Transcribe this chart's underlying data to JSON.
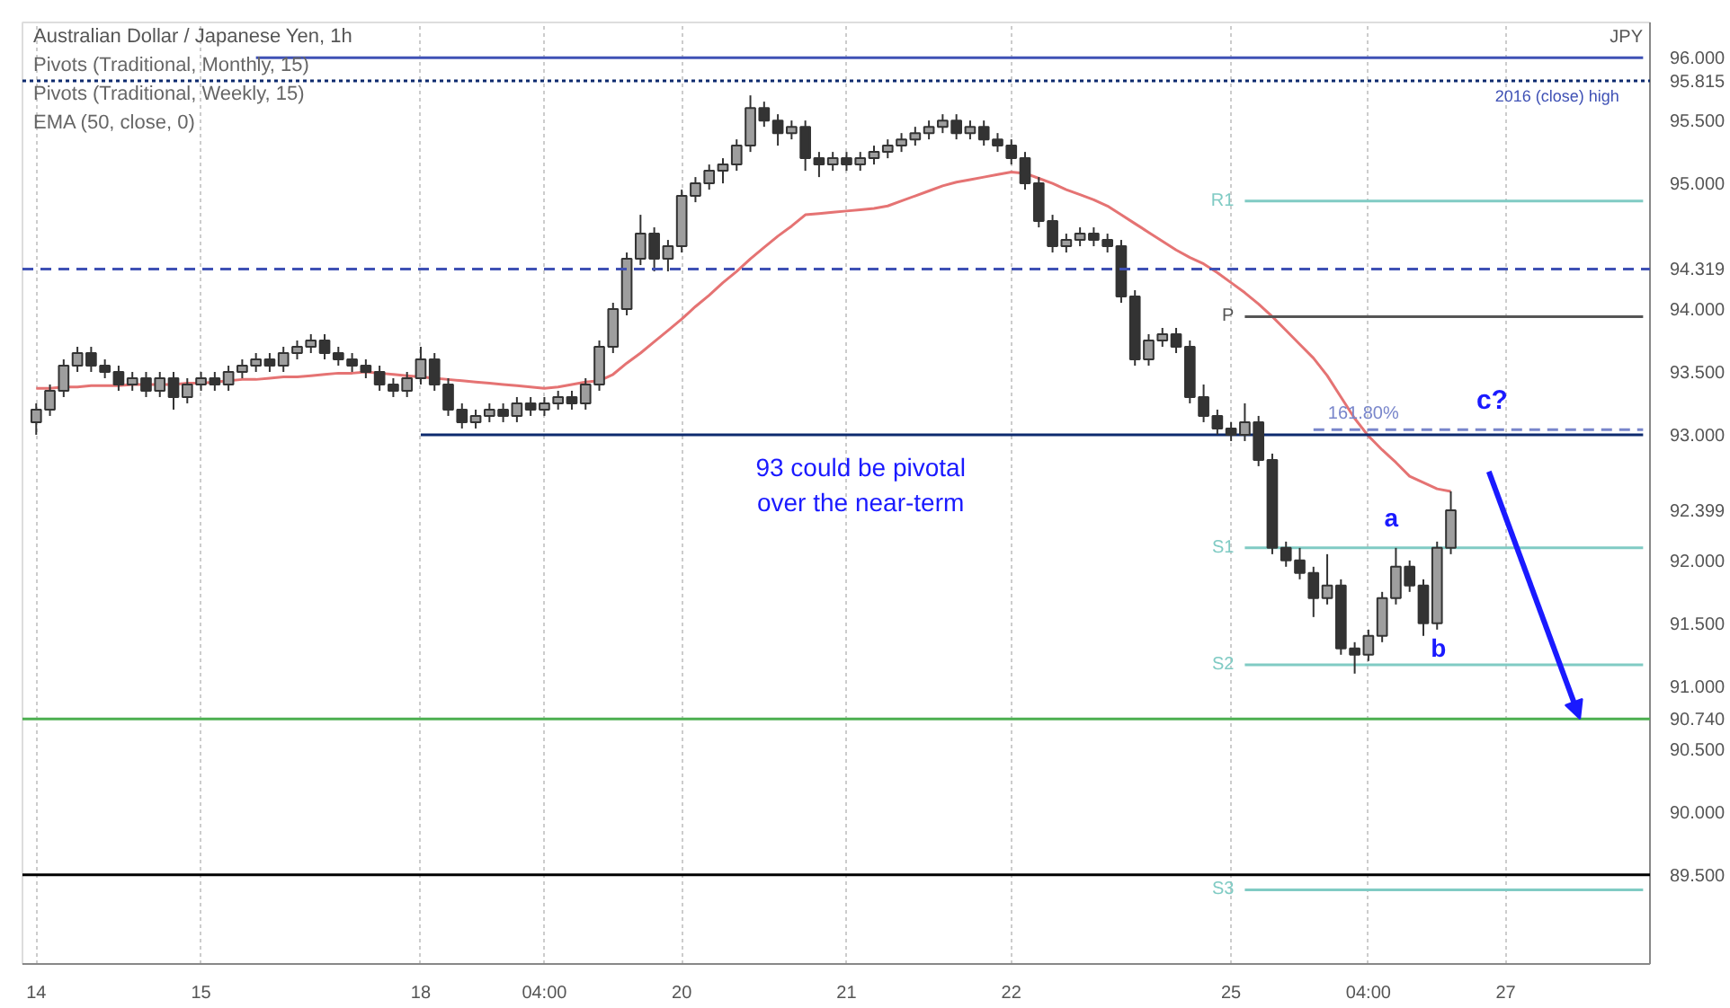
{
  "chart_data": {
    "type": "candlestick",
    "title": "Australian Dollar / Japanese Yen, 1h",
    "ylabel": "JPY",
    "color": "#333333",
    "categories": [
      "14",
      null,
      null,
      null,
      null,
      null,
      null,
      null,
      null,
      null,
      null,
      null,
      "15",
      null,
      null,
      null,
      null,
      null,
      null,
      null,
      null,
      null,
      null,
      null,
      null,
      null,
      null,
      null,
      "18",
      null,
      null,
      null,
      null,
      null,
      null,
      null,
      null,
      "04:00",
      null,
      null,
      null,
      null,
      null,
      null,
      null,
      null,
      null,
      "20",
      null,
      null,
      null,
      null,
      null,
      null,
      null,
      null,
      null,
      null,
      null,
      "21",
      null,
      null,
      null,
      null,
      null,
      null,
      null,
      null,
      null,
      null,
      null,
      "22",
      null,
      null,
      null,
      null,
      null,
      null,
      null,
      null,
      null,
      null,
      null,
      null,
      null,
      null,
      null,
      "25",
      null,
      null,
      null,
      null,
      null,
      null,
      null,
      null,
      null,
      "04:00",
      null,
      null,
      null,
      null,
      null,
      null,
      null,
      null,
      null,
      "27",
      null,
      null,
      null,
      null,
      null,
      null,
      null,
      null,
      null,
      null
    ],
    "ohlc": [
      [
        93.1,
        93.25,
        93.0,
        93.2
      ],
      [
        93.2,
        93.4,
        93.15,
        93.35
      ],
      [
        93.35,
        93.6,
        93.3,
        93.55
      ],
      [
        93.55,
        93.7,
        93.5,
        93.65
      ],
      [
        93.65,
        93.7,
        93.5,
        93.55
      ],
      [
        93.55,
        93.6,
        93.45,
        93.5
      ],
      [
        93.5,
        93.55,
        93.35,
        93.4
      ],
      [
        93.4,
        93.5,
        93.35,
        93.45
      ],
      [
        93.45,
        93.5,
        93.3,
        93.35
      ],
      [
        93.35,
        93.5,
        93.3,
        93.45
      ],
      [
        93.45,
        93.5,
        93.2,
        93.3
      ],
      [
        93.3,
        93.45,
        93.25,
        93.4
      ],
      [
        93.4,
        93.5,
        93.35,
        93.45
      ],
      [
        93.45,
        93.5,
        93.35,
        93.4
      ],
      [
        93.4,
        93.55,
        93.35,
        93.5
      ],
      [
        93.5,
        93.6,
        93.45,
        93.55
      ],
      [
        93.55,
        93.65,
        93.5,
        93.6
      ],
      [
        93.6,
        93.65,
        93.5,
        93.55
      ],
      [
        93.55,
        93.7,
        93.5,
        93.65
      ],
      [
        93.65,
        93.75,
        93.6,
        93.7
      ],
      [
        93.7,
        93.8,
        93.65,
        93.75
      ],
      [
        93.75,
        93.8,
        93.6,
        93.65
      ],
      [
        93.65,
        93.7,
        93.55,
        93.6
      ],
      [
        93.6,
        93.65,
        93.5,
        93.55
      ],
      [
        93.55,
        93.6,
        93.45,
        93.5
      ],
      [
        93.5,
        93.55,
        93.35,
        93.4
      ],
      [
        93.4,
        93.45,
        93.3,
        93.35
      ],
      [
        93.35,
        93.5,
        93.3,
        93.45
      ],
      [
        93.45,
        93.7,
        93.4,
        93.6
      ],
      [
        93.6,
        93.65,
        93.35,
        93.4
      ],
      [
        93.4,
        93.45,
        93.15,
        93.2
      ],
      [
        93.2,
        93.25,
        93.05,
        93.1
      ],
      [
        93.1,
        93.2,
        93.05,
        93.15
      ],
      [
        93.15,
        93.25,
        93.1,
        93.2
      ],
      [
        93.2,
        93.25,
        93.1,
        93.15
      ],
      [
        93.15,
        93.3,
        93.1,
        93.25
      ],
      [
        93.25,
        93.3,
        93.15,
        93.2
      ],
      [
        93.2,
        93.3,
        93.15,
        93.25
      ],
      [
        93.25,
        93.35,
        93.2,
        93.3
      ],
      [
        93.3,
        93.35,
        93.2,
        93.25
      ],
      [
        93.25,
        93.45,
        93.2,
        93.4
      ],
      [
        93.4,
        93.75,
        93.35,
        93.7
      ],
      [
        93.7,
        94.05,
        93.65,
        94.0
      ],
      [
        94.0,
        94.45,
        93.95,
        94.4
      ],
      [
        94.4,
        94.75,
        94.35,
        94.6
      ],
      [
        94.6,
        94.65,
        94.3,
        94.4
      ],
      [
        94.4,
        94.55,
        94.3,
        94.5
      ],
      [
        94.5,
        94.95,
        94.45,
        94.9
      ],
      [
        94.9,
        95.05,
        94.85,
        95.0
      ],
      [
        95.0,
        95.15,
        94.95,
        95.1
      ],
      [
        95.1,
        95.2,
        95.0,
        95.15
      ],
      [
        95.15,
        95.35,
        95.1,
        95.3
      ],
      [
        95.3,
        95.7,
        95.25,
        95.6
      ],
      [
        95.6,
        95.65,
        95.45,
        95.5
      ],
      [
        95.5,
        95.55,
        95.3,
        95.4
      ],
      [
        95.4,
        95.5,
        95.35,
        95.45
      ],
      [
        95.45,
        95.5,
        95.1,
        95.2
      ],
      [
        95.2,
        95.25,
        95.05,
        95.15
      ],
      [
        95.15,
        95.25,
        95.1,
        95.2
      ],
      [
        95.2,
        95.25,
        95.1,
        95.15
      ],
      [
        95.15,
        95.25,
        95.1,
        95.2
      ],
      [
        95.2,
        95.3,
        95.15,
        95.25
      ],
      [
        95.25,
        95.35,
        95.2,
        95.3
      ],
      [
        95.3,
        95.4,
        95.25,
        95.35
      ],
      [
        95.35,
        95.45,
        95.3,
        95.4
      ],
      [
        95.4,
        95.5,
        95.35,
        95.45
      ],
      [
        95.45,
        95.55,
        95.4,
        95.5
      ],
      [
        95.5,
        95.55,
        95.35,
        95.4
      ],
      [
        95.4,
        95.5,
        95.35,
        95.45
      ],
      [
        95.45,
        95.5,
        95.3,
        95.35
      ],
      [
        95.35,
        95.4,
        95.25,
        95.3
      ],
      [
        95.3,
        95.35,
        95.15,
        95.2
      ],
      [
        95.2,
        95.25,
        94.95,
        95.0
      ],
      [
        95.0,
        95.05,
        94.65,
        94.7
      ],
      [
        94.7,
        94.75,
        94.45,
        94.5
      ],
      [
        94.5,
        94.6,
        94.45,
        94.55
      ],
      [
        94.55,
        94.65,
        94.5,
        94.6
      ],
      [
        94.6,
        94.65,
        94.5,
        94.55
      ],
      [
        94.55,
        94.6,
        94.45,
        94.5
      ],
      [
        94.5,
        94.55,
        94.05,
        94.1
      ],
      [
        94.1,
        94.15,
        93.55,
        93.6
      ],
      [
        93.6,
        93.8,
        93.55,
        93.75
      ],
      [
        93.75,
        93.85,
        93.7,
        93.8
      ],
      [
        93.8,
        93.85,
        93.65,
        93.7
      ],
      [
        93.7,
        93.75,
        93.25,
        93.3
      ],
      [
        93.3,
        93.4,
        93.1,
        93.15
      ],
      [
        93.15,
        93.2,
        93.0,
        93.05
      ],
      [
        93.05,
        93.1,
        92.95,
        93.0
      ],
      [
        93.0,
        93.25,
        92.95,
        93.1
      ],
      [
        93.1,
        93.15,
        92.75,
        92.8
      ],
      [
        92.8,
        92.85,
        92.05,
        92.1
      ],
      [
        92.1,
        92.15,
        91.95,
        92.0
      ],
      [
        92.0,
        92.1,
        91.85,
        91.9
      ],
      [
        91.9,
        91.95,
        91.55,
        91.7
      ],
      [
        91.7,
        92.05,
        91.65,
        91.8
      ],
      [
        91.8,
        91.85,
        91.25,
        91.3
      ],
      [
        91.3,
        91.35,
        91.1,
        91.25
      ],
      [
        91.25,
        91.45,
        91.2,
        91.4
      ],
      [
        91.4,
        91.75,
        91.35,
        91.7
      ],
      [
        91.7,
        92.1,
        91.65,
        91.95
      ],
      [
        91.95,
        92.0,
        91.75,
        91.8
      ],
      [
        91.8,
        91.85,
        91.4,
        91.5
      ],
      [
        91.5,
        92.15,
        91.45,
        92.1
      ],
      [
        92.1,
        92.55,
        92.05,
        92.4
      ],
      null,
      null,
      null,
      null,
      null,
      null,
      null,
      null,
      null,
      null,
      null,
      null,
      null,
      null
    ],
    "series": [
      {
        "type": "line",
        "color": "#e57373",
        "values": [
          93.37,
          93.37,
          93.38,
          93.38,
          93.39,
          93.39,
          93.39,
          93.4,
          93.4,
          93.4,
          93.4,
          93.41,
          93.41,
          93.42,
          93.43,
          93.44,
          93.44,
          93.45,
          93.46,
          93.46,
          93.47,
          93.48,
          93.49,
          93.49,
          93.5,
          93.49,
          93.48,
          93.47,
          93.46,
          93.45,
          93.44,
          93.43,
          93.42,
          93.41,
          93.4,
          93.39,
          93.38,
          93.37,
          93.38,
          93.4,
          93.42,
          93.43,
          93.48,
          93.57,
          93.65,
          93.74,
          93.83,
          93.92,
          94.02,
          94.11,
          94.21,
          94.3,
          94.4,
          94.49,
          94.58,
          94.66,
          94.75,
          94.76,
          94.77,
          94.78,
          94.79,
          94.8,
          94.82,
          94.86,
          94.9,
          94.94,
          94.98,
          95.01,
          95.03,
          95.05,
          95.07,
          95.09,
          95.08,
          95.04,
          95.0,
          94.95,
          94.91,
          94.87,
          94.82,
          94.75,
          94.68,
          94.61,
          94.54,
          94.47,
          94.41,
          94.36,
          94.29,
          94.21,
          94.13,
          94.04,
          93.94,
          93.83,
          93.72,
          93.61,
          93.47,
          93.3,
          93.13,
          92.99,
          92.88,
          92.78,
          92.67,
          92.62,
          92.57,
          92.55,
          null,
          null,
          null,
          null,
          null,
          null,
          null,
          null,
          null,
          null,
          null,
          null,
          null,
          null
        ]
      },
      {
        "type": "line",
        "color": "#3f51b5",
        "values": [
          null,
          null,
          null,
          null,
          null,
          null,
          null,
          null,
          null,
          null,
          null,
          null,
          null,
          null,
          null,
          null,
          96.0,
          96.0,
          96.0,
          96.0,
          96.0,
          96.0,
          96.0,
          96.0,
          96.0,
          96.0,
          96.0,
          96.0,
          96.0,
          96.0,
          96.0,
          96.0,
          96.0,
          96.0,
          96.0,
          96.0,
          96.0,
          96.0,
          96.0,
          96.0,
          96.0,
          96.0,
          96.0,
          96.0,
          96.0,
          96.0,
          96.0,
          96.0,
          96.0,
          96.0,
          96.0,
          96.0,
          96.0,
          96.0,
          96.0,
          96.0,
          96.0,
          96.0,
          96.0,
          96.0,
          96.0,
          96.0,
          96.0,
          96.0,
          96.0,
          96.0,
          96.0,
          96.0,
          96.0,
          96.0,
          96.0,
          96.0,
          96.0,
          96.0,
          96.0,
          96.0,
          96.0,
          96.0,
          96.0,
          96.0,
          96.0,
          96.0,
          96.0,
          96.0,
          96.0,
          96.0,
          96.0,
          96.0,
          96.0,
          96.0,
          96.0,
          96.0,
          96.0,
          96.0,
          96.0,
          96.0,
          96.0,
          96.0,
          96.0,
          96.0,
          96.0,
          96.0,
          96.0,
          96.0,
          96.0,
          96.0,
          96.0,
          96.0,
          96.0,
          96.0,
          96.0,
          96.0,
          96.0,
          96.0,
          96.0,
          96.0,
          96.0,
          96.0
        ]
      },
      {
        "type": "line",
        "color": "#0d2a6e",
        "values": [
          null,
          null,
          null,
          null,
          null,
          null,
          null,
          null,
          null,
          null,
          null,
          null,
          null,
          null,
          null,
          null,
          null,
          null,
          null,
          null,
          null,
          null,
          null,
          null,
          null,
          null,
          null,
          null,
          93.0,
          93.0,
          93.0,
          93.0,
          93.0,
          93.0,
          93.0,
          93.0,
          93.0,
          93.0,
          93.0,
          93.0,
          93.0,
          93.0,
          93.0,
          93.0,
          93.0,
          93.0,
          93.0,
          93.0,
          93.0,
          93.0,
          93.0,
          93.0,
          93.0,
          93.0,
          93.0,
          93.0,
          93.0,
          93.0,
          93.0,
          93.0,
          93.0,
          93.0,
          93.0,
          93.0,
          93.0,
          93.0,
          93.0,
          93.0,
          93.0,
          93.0,
          93.0,
          93.0,
          93.0,
          93.0,
          93.0,
          93.0,
          93.0,
          93.0,
          93.0,
          93.0,
          93.0,
          93.0,
          93.0,
          93.0,
          93.0,
          93.0,
          93.0,
          93.0,
          93.0,
          93.0,
          93.0,
          93.0,
          93.0,
          93.0,
          93.0,
          93.0,
          93.0,
          93.0,
          93.0,
          93.0,
          93.0,
          93.0,
          93.0,
          93.0,
          93.0,
          93.0,
          93.0,
          93.0,
          93.0,
          93.0,
          93.0,
          93.0,
          93.0,
          93.0,
          93.0,
          93.0,
          93.0,
          93.0
        ]
      },
      {
        "type": "line",
        "name": "R1",
        "color": "#80cbc4",
        "values": [
          null,
          null,
          null,
          null,
          null,
          null,
          null,
          null,
          null,
          null,
          null,
          null,
          null,
          null,
          null,
          null,
          null,
          null,
          null,
          null,
          null,
          null,
          null,
          null,
          null,
          null,
          null,
          null,
          null,
          null,
          null,
          null,
          null,
          null,
          null,
          null,
          null,
          null,
          null,
          null,
          null,
          null,
          null,
          null,
          null,
          null,
          null,
          null,
          null,
          null,
          null,
          null,
          null,
          null,
          null,
          null,
          null,
          null,
          null,
          null,
          null,
          null,
          null,
          null,
          null,
          null,
          null,
          null,
          null,
          null,
          null,
          null,
          null,
          null,
          null,
          null,
          null,
          null,
          null,
          null,
          null,
          null,
          null,
          null,
          null,
          null,
          null,
          null,
          94.86,
          94.86,
          94.86,
          94.86,
          94.86,
          94.86,
          94.86,
          94.86,
          94.86,
          94.86,
          94.86,
          94.86,
          94.86,
          94.86,
          94.86,
          94.86,
          94.86,
          94.86,
          94.86,
          94.86,
          94.86,
          94.86,
          94.86,
          94.86,
          94.86,
          94.86,
          94.86,
          94.86,
          94.86,
          94.86
        ]
      },
      {
        "type": "line",
        "name": "P",
        "color": "#555555",
        "values": [
          null,
          null,
          null,
          null,
          null,
          null,
          null,
          null,
          null,
          null,
          null,
          null,
          null,
          null,
          null,
          null,
          null,
          null,
          null,
          null,
          null,
          null,
          null,
          null,
          null,
          null,
          null,
          null,
          null,
          null,
          null,
          null,
          null,
          null,
          null,
          null,
          null,
          null,
          null,
          null,
          null,
          null,
          null,
          null,
          null,
          null,
          null,
          null,
          null,
          null,
          null,
          null,
          null,
          null,
          null,
          null,
          null,
          null,
          null,
          null,
          null,
          null,
          null,
          null,
          null,
          null,
          null,
          null,
          null,
          null,
          null,
          null,
          null,
          null,
          null,
          null,
          null,
          null,
          null,
          null,
          null,
          null,
          null,
          null,
          null,
          null,
          null,
          null,
          93.94,
          93.94,
          93.94,
          93.94,
          93.94,
          93.94,
          93.94,
          93.94,
          93.94,
          93.94,
          93.94,
          93.94,
          93.94,
          93.94,
          93.94,
          93.94,
          93.94,
          93.94,
          93.94,
          93.94,
          93.94,
          93.94,
          93.94,
          93.94,
          93.94,
          93.94,
          93.94,
          93.94,
          93.94,
          93.94
        ]
      },
      {
        "type": "line",
        "name": "161.80%",
        "color": "#7986cb",
        "line_style": "dashed",
        "values": [
          null,
          null,
          null,
          null,
          null,
          null,
          null,
          null,
          null,
          null,
          null,
          null,
          null,
          null,
          null,
          null,
          null,
          null,
          null,
          null,
          null,
          null,
          null,
          null,
          null,
          null,
          null,
          null,
          null,
          null,
          null,
          null,
          null,
          null,
          null,
          null,
          null,
          null,
          null,
          null,
          null,
          null,
          null,
          null,
          null,
          null,
          null,
          null,
          null,
          null,
          null,
          null,
          null,
          null,
          null,
          null,
          null,
          null,
          null,
          null,
          null,
          null,
          null,
          null,
          null,
          null,
          null,
          null,
          null,
          null,
          null,
          null,
          null,
          null,
          null,
          null,
          null,
          null,
          null,
          null,
          null,
          null,
          null,
          null,
          null,
          null,
          null,
          null,
          null,
          null,
          null,
          null,
          null,
          93.04,
          93.04,
          93.04,
          93.04,
          93.04,
          93.04,
          93.04,
          93.04,
          93.04,
          93.04,
          93.04,
          93.04,
          93.04,
          93.04,
          93.04,
          93.04,
          93.04,
          93.04,
          93.04,
          93.04,
          93.04,
          93.04,
          93.04,
          93.04,
          93.04
        ]
      },
      {
        "type": "line",
        "name": "S1",
        "color": "#80cbc4",
        "values": [
          null,
          null,
          null,
          null,
          null,
          null,
          null,
          null,
          null,
          null,
          null,
          null,
          null,
          null,
          null,
          null,
          null,
          null,
          null,
          null,
          null,
          null,
          null,
          null,
          null,
          null,
          null,
          null,
          null,
          null,
          null,
          null,
          null,
          null,
          null,
          null,
          null,
          null,
          null,
          null,
          null,
          null,
          null,
          null,
          null,
          null,
          null,
          null,
          null,
          null,
          null,
          null,
          null,
          null,
          null,
          null,
          null,
          null,
          null,
          null,
          null,
          null,
          null,
          null,
          null,
          null,
          null,
          null,
          null,
          null,
          null,
          null,
          null,
          null,
          null,
          null,
          null,
          null,
          null,
          null,
          null,
          null,
          null,
          null,
          null,
          null,
          null,
          null,
          92.1,
          92.1,
          92.1,
          92.1,
          92.1,
          92.1,
          92.1,
          92.1,
          92.1,
          92.1,
          92.1,
          92.1,
          92.1,
          92.1,
          92.1,
          92.1,
          92.1,
          92.1,
          92.1,
          92.1,
          92.1,
          92.1,
          92.1,
          92.1,
          92.1,
          92.1,
          92.1,
          92.1,
          92.1,
          92.1
        ]
      },
      {
        "type": "line",
        "name": "S2",
        "color": "#80cbc4",
        "values": [
          null,
          null,
          null,
          null,
          null,
          null,
          null,
          null,
          null,
          null,
          null,
          null,
          null,
          null,
          null,
          null,
          null,
          null,
          null,
          null,
          null,
          null,
          null,
          null,
          null,
          null,
          null,
          null,
          null,
          null,
          null,
          null,
          null,
          null,
          null,
          null,
          null,
          null,
          null,
          null,
          null,
          null,
          null,
          null,
          null,
          null,
          null,
          null,
          null,
          null,
          null,
          null,
          null,
          null,
          null,
          null,
          null,
          null,
          null,
          null,
          null,
          null,
          null,
          null,
          null,
          null,
          null,
          null,
          null,
          null,
          null,
          null,
          null,
          null,
          null,
          null,
          null,
          null,
          null,
          null,
          null,
          null,
          null,
          null,
          null,
          null,
          null,
          null,
          91.17,
          91.17,
          91.17,
          91.17,
          91.17,
          91.17,
          91.17,
          91.17,
          91.17,
          91.17,
          91.17,
          91.17,
          91.17,
          91.17,
          91.17,
          91.17,
          91.17,
          91.17,
          91.17,
          91.17,
          91.17,
          91.17,
          91.17,
          91.17,
          91.17,
          91.17,
          91.17,
          91.17,
          91.17,
          91.17
        ]
      },
      {
        "type": "line",
        "name": "S3",
        "color": "#80cbc4",
        "values": [
          null,
          null,
          null,
          null,
          null,
          null,
          null,
          null,
          null,
          null,
          null,
          null,
          null,
          null,
          null,
          null,
          null,
          null,
          null,
          null,
          null,
          null,
          null,
          null,
          null,
          null,
          null,
          null,
          null,
          null,
          null,
          null,
          null,
          null,
          null,
          null,
          null,
          null,
          null,
          null,
          null,
          null,
          null,
          null,
          null,
          null,
          null,
          null,
          null,
          null,
          null,
          null,
          null,
          null,
          null,
          null,
          null,
          null,
          null,
          null,
          null,
          null,
          null,
          null,
          null,
          null,
          null,
          null,
          null,
          null,
          null,
          null,
          null,
          null,
          null,
          null,
          null,
          null,
          null,
          null,
          null,
          null,
          null,
          null,
          null,
          null,
          null,
          null,
          89.38,
          89.38,
          89.38,
          89.38,
          89.38,
          89.38,
          89.38,
          89.38,
          89.38,
          89.38,
          89.38,
          89.38,
          89.38,
          89.38,
          89.38,
          89.38,
          89.38,
          89.38,
          89.38,
          89.38,
          89.38,
          89.38,
          89.38,
          89.38,
          89.38,
          89.38,
          89.38,
          89.38,
          89.38,
          89.38
        ]
      }
    ],
    "ref_lines": [
      {
        "axis": "y",
        "value": 95.815,
        "color": "#0d2a6e",
        "line_style": "dotted"
      },
      {
        "axis": "y",
        "value": 94.319,
        "color": "#3f51b5",
        "line_style": "dashed"
      },
      {
        "axis": "y",
        "value": 90.74,
        "color": "#4caf50"
      },
      {
        "axis": "y",
        "value": 89.5,
        "color": "#000000"
      }
    ],
    "annotations": [
      "Pivots (Traditional, Monthly, 15)",
      "Pivots (Traditional, Weekly, 15)",
      "EMA (50, close, 0)",
      "2016 (close) high",
      "93 could be pivotal\nover the near-term",
      "a",
      "b",
      "c?"
    ],
    "ylim": [
      88.79,
      96.28
    ],
    "yticks": [
      {
        "value": 89.5,
        "label": "89.500"
      },
      {
        "value": 90.0,
        "label": "90.000"
      },
      {
        "value": 90.5,
        "label": "90.500"
      },
      {
        "value": 90.74,
        "label": "90.740"
      },
      {
        "value": 91.0,
        "label": "91.000"
      },
      {
        "value": 91.5,
        "label": "91.500"
      },
      {
        "value": 92.0,
        "label": "92.000"
      },
      {
        "value": 92.399,
        "label": "92.399"
      },
      {
        "value": 93.0,
        "label": "93.000"
      },
      {
        "value": 93.5,
        "label": "93.500"
      },
      {
        "value": 94.0,
        "label": "94.000"
      },
      {
        "value": 94.319,
        "label": "94.319"
      },
      {
        "value": 95.0,
        "label": "95.000"
      },
      {
        "value": 95.5,
        "label": "95.500"
      },
      {
        "value": 95.815,
        "label": "95.815"
      },
      {
        "value": 96.0,
        "label": "96.000"
      }
    ],
    "grid": "x"
  }
}
